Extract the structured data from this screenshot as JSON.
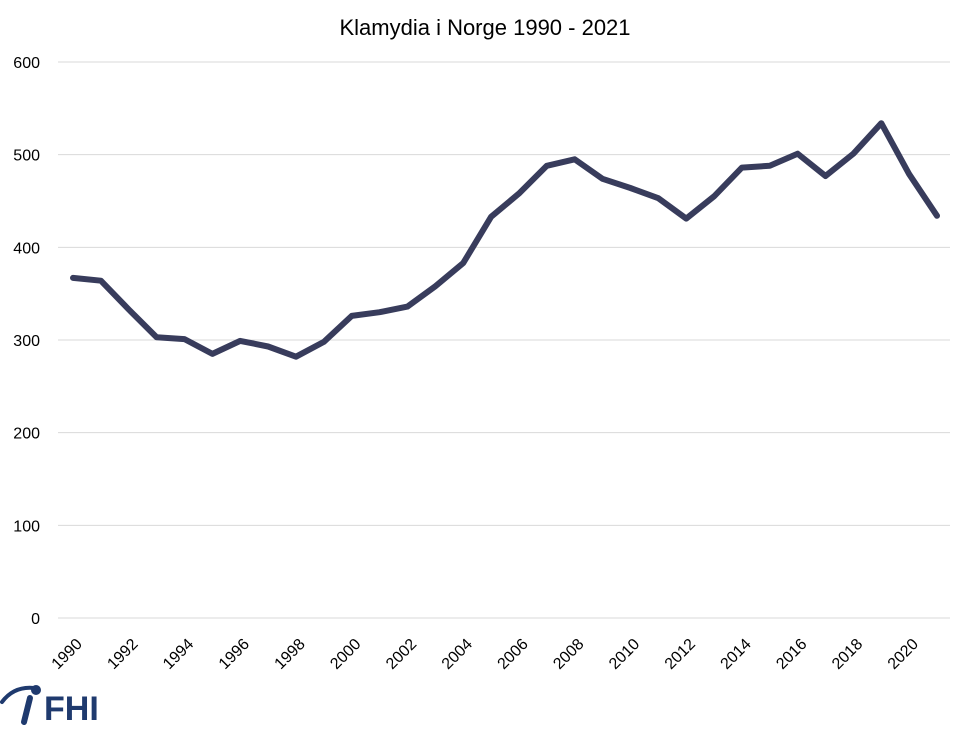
{
  "chart_data": {
    "type": "line",
    "title": "Klamydia i Norge 1990 - 2021",
    "xlabel": "",
    "ylabel": "",
    "x": [
      1990,
      1991,
      1992,
      1993,
      1994,
      1995,
      1996,
      1997,
      1998,
      1999,
      2000,
      2001,
      2002,
      2003,
      2004,
      2005,
      2006,
      2007,
      2008,
      2009,
      2010,
      2011,
      2012,
      2013,
      2014,
      2015,
      2016,
      2017,
      2018,
      2019,
      2020,
      2021
    ],
    "x_tick_labels": [
      "1990",
      "1992",
      "1994",
      "1996",
      "1998",
      "2000",
      "2002",
      "2004",
      "2006",
      "2008",
      "2010",
      "2012",
      "2014",
      "2016",
      "2018",
      "2020"
    ],
    "y_ticks": [
      0,
      100,
      200,
      300,
      400,
      500,
      600
    ],
    "ylim": [
      0,
      600
    ],
    "grid": "horizontal",
    "legend": "none",
    "series": [
      {
        "color": "#383c5c",
        "values": [
          367,
          364,
          333,
          303,
          301,
          285,
          299,
          293,
          282,
          298,
          326,
          330,
          336,
          358,
          383,
          433,
          458,
          488,
          495,
          474,
          464,
          453,
          431,
          455,
          486,
          488,
          501,
          477,
          501,
          534,
          479,
          434
        ]
      }
    ]
  },
  "branding": {
    "logo_text": "FHI",
    "logo_color": "#1f3a6e",
    "logo_icon": "fhi-arc-logo-icon"
  }
}
